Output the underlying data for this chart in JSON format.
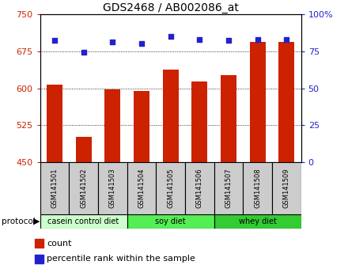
{
  "title": "GDS2468 / AB002086_at",
  "samples": [
    "GSM141501",
    "GSM141502",
    "GSM141503",
    "GSM141504",
    "GSM141505",
    "GSM141506",
    "GSM141507",
    "GSM141508",
    "GSM141509"
  ],
  "counts": [
    607,
    502,
    597,
    594,
    637,
    614,
    627,
    693,
    693
  ],
  "percentile_ranks": [
    82,
    74,
    81,
    80,
    85,
    83,
    82,
    83,
    83
  ],
  "ylim_left": [
    450,
    750
  ],
  "ylim_right": [
    0,
    100
  ],
  "yticks_left": [
    450,
    525,
    600,
    675,
    750
  ],
  "yticks_right": [
    0,
    25,
    50,
    75,
    100
  ],
  "bar_color": "#cc2200",
  "dot_color": "#2222cc",
  "bar_bottom": 450,
  "groups": [
    {
      "label": "casein control diet",
      "start": 0,
      "end": 3,
      "color": "#ccffcc"
    },
    {
      "label": "soy diet",
      "start": 3,
      "end": 6,
      "color": "#55ee55"
    },
    {
      "label": "whey diet",
      "start": 6,
      "end": 9,
      "color": "#33cc33"
    }
  ],
  "protocol_label": "protocol",
  "legend_count_label": "count",
  "legend_pct_label": "percentile rank within the sample",
  "grid_color": "black",
  "tick_label_bg": "#cccccc",
  "title_fontsize": 10,
  "axis_fontsize": 8,
  "legend_fontsize": 8
}
